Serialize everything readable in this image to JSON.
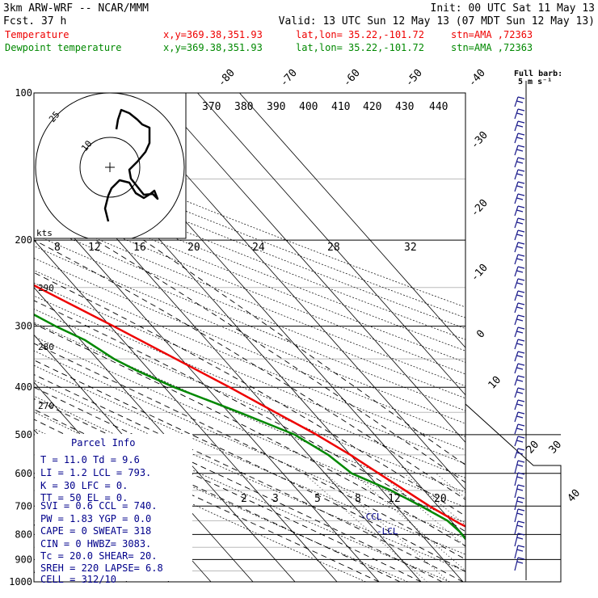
{
  "header": {
    "model": "3km ARW-WRF -- NCAR/MMM",
    "init": "Init: 00 UTC Sat 11 May 13",
    "fcst": "Fcst.   37 h",
    "valid": "Valid: 13 UTC Sun 12 May 13 (07 MDT Sun 12 May 13)"
  },
  "traces": [
    {
      "label": "Temperature",
      "xy": "x,y=369.38,351.93",
      "latlon": "lat,lon= 35.22,-101.72",
      "stn": "stn=AMA ,72363",
      "color": "#ee0000"
    },
    {
      "label": "Dewpoint temperature",
      "xy": "x,y=369.38,351.93",
      "latlon": "lat,lon= 35.22,-101.72",
      "stn": "stn=AMA ,72363",
      "color": "#008800"
    }
  ],
  "barb_legend": {
    "line1": "Full barb:",
    "line2": "5 m s⁻¹"
  },
  "parcel_info": {
    "title": "Parcel Info",
    "rows": [
      "T  =   11.0 Td =   9.6",
      "LI =    1.2 LCL =  793.",
      "K  =     30 LFC =    0.",
      "TT =     50 EL  =    0.",
      "SVI =   0.6 CCL =  740.",
      "PW =   1.83 YGP =  0.0",
      "CAPE =    0 SWEAT=  318",
      "CIN =     0 HWBZ= 3083.",
      "Tc =   20.0 SHEAR=  20.",
      "SREH =  220 LAPSE=  6.8",
      "CELL = 312/10"
    ]
  },
  "hodograph": {
    "kts_label": "kts",
    "ring_labels": [
      "10",
      "25"
    ],
    "speed_labels": [
      "8",
      "12",
      "16",
      "20",
      "24",
      "28",
      "32"
    ]
  },
  "level_labels": {
    "ccl": "-CCL",
    "lcl": "-LCL"
  },
  "chart_data": {
    "type": "skew-t",
    "pressure_ticks": [
      100,
      200,
      300,
      400,
      500,
      600,
      700,
      800,
      900,
      1000
    ],
    "isotherm_labels": [
      -80,
      -70,
      -60,
      -50,
      -40,
      -30,
      -20,
      -10,
      0,
      10,
      20,
      30,
      40
    ],
    "theta_labels": [
      270,
      280,
      290,
      370,
      380,
      390,
      400,
      410,
      420,
      430,
      440
    ],
    "mixing_ratio_labels": [
      2,
      3,
      5,
      8,
      12,
      20
    ],
    "temperature": {
      "name": "Temperature",
      "pressure": [
        900,
        860,
        830,
        800,
        760,
        700,
        650,
        600,
        550,
        500,
        450,
        400,
        350,
        300,
        250,
        200,
        180,
        160,
        140,
        120,
        100
      ],
      "value": [
        19.5,
        17,
        16,
        14.5,
        11.5,
        8,
        5.5,
        2.8,
        0,
        -3.8,
        -8.9,
        -14.5,
        -21.3,
        -29.2,
        -39,
        -49.2,
        -54.2,
        -56.5,
        -60,
        -64,
        -67
      ]
    },
    "dewpoint": {
      "name": "Dewpoint temperature",
      "pressure": [
        900,
        880,
        860,
        820,
        790,
        750,
        700,
        650,
        600,
        550,
        500,
        450,
        400,
        370,
        350,
        320,
        300,
        250,
        200,
        180,
        160,
        140,
        120,
        100
      ],
      "value": [
        11.4,
        10.4,
        9.8,
        9.6,
        9.8,
        9.2,
        6,
        2.1,
        -3.6,
        -5.3,
        -9,
        -17.5,
        -27.7,
        -33,
        -36,
        -39,
        -43,
        -52,
        -61,
        -64.5,
        -68,
        -71,
        -74.5,
        -78
      ]
    }
  }
}
